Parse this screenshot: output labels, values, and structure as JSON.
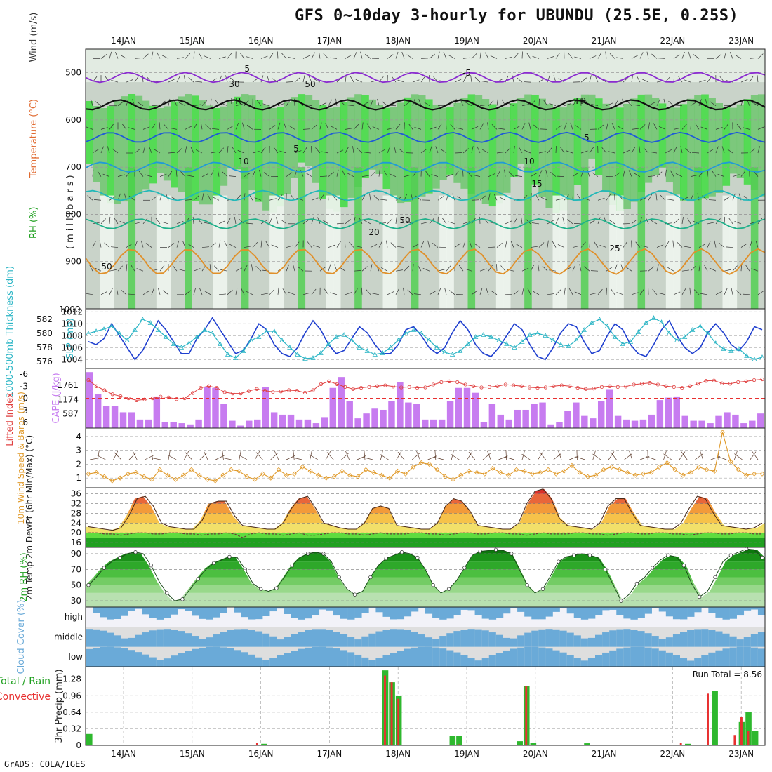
{
  "title": "GFS 0~10day 3-hourly for UBUNDU (25.5E, 0.25S)",
  "footer": "GrADS: COLA/IGES",
  "colors": {
    "rh_green": "#2ec12e",
    "temp_red": "#e8503a",
    "cape_purple": "#c77cf0",
    "slp_blue": "#1f3fcf",
    "thick_cyan": "#2ab5c5",
    "wind_orange": "#e09a2a",
    "cloud_blue": "#6aaad8",
    "precip_green": "#2eb82e",
    "precip_red": "#e83030"
  },
  "chart_data": [
    {
      "id": "upper_air",
      "type": "heatmap",
      "ylabel_parts": [
        "RH (%)",
        "Temperature (°C)",
        "Wind (m/s)"
      ],
      "yaxis_label": "(millibars)",
      "ylim": [
        1000,
        450
      ],
      "yticks": [
        500,
        600,
        700,
        800,
        900
      ],
      "x_dates": [
        "14JAN",
        "15JAN",
        "16JAN",
        "17JAN",
        "18JAN",
        "19JAN",
        "20JAN",
        "21JAN",
        "22JAN",
        "23JAN"
      ],
      "contour_labels": [
        "-5",
        "-5",
        "FR",
        "FR",
        "5",
        "5",
        "10",
        "10",
        "15",
        "20",
        "25",
        "30",
        "50",
        "50",
        "50"
      ],
      "isotherms": [
        {
          "label": "-5",
          "color": "#8a2bd0",
          "level": 510
        },
        {
          "label": "FR",
          "color": "#111111",
          "level": 568
        },
        {
          "label": "5",
          "color": "#1e5ad8",
          "level": 637
        },
        {
          "label": "10",
          "color": "#1f9ad8",
          "level": 700
        },
        {
          "label": "15",
          "color": "#22b8b8",
          "level": 760
        },
        {
          "label": "20",
          "color": "#1fb08a",
          "level": 820
        },
        {
          "label": "25",
          "color": "#e0902a",
          "level": 900
        }
      ]
    },
    {
      "id": "slp_thickness",
      "type": "line",
      "ylabel_left": "1000-500mb Thickness (dm)",
      "ylabel_right": "SLP (mb)",
      "thickness_ticks": [
        576,
        578,
        580,
        582
      ],
      "slp_ticks": [
        1004,
        1006,
        1008,
        1010,
        1012
      ],
      "slp_top_label": "1000",
      "series": [
        {
          "name": "SLP (mb)",
          "values": [
            1007,
            1006.5,
            1007.5,
            1010,
            1008,
            1006,
            1004,
            1005.5,
            1008,
            1010.5,
            1009,
            1007,
            1005,
            1005,
            1007.5,
            1009,
            1011,
            1009,
            1007,
            1005,
            1005.5,
            1007.5,
            1010,
            1009,
            1006.5,
            1005,
            1004.5,
            1006,
            1008.5,
            1010.5,
            1009,
            1006.5,
            1005,
            1005.5,
            1007.5,
            1009.5,
            1008.5,
            1006.5,
            1005,
            1005,
            1006.5,
            1009,
            1009.5,
            1008,
            1006,
            1005,
            1006,
            1008.5,
            1010.5,
            1009,
            1006.5,
            1005,
            1004.5,
            1006,
            1008,
            1010,
            1009,
            1006.5,
            1004.5,
            1004,
            1006,
            1008.5,
            1010,
            1009.5,
            1007,
            1005,
            1005.5,
            1008,
            1010,
            1009,
            1006.5,
            1005,
            1004.5,
            1006.5,
            1009,
            1010.5,
            1008,
            1006,
            1005,
            1006,
            1008.5,
            1010,
            1008.5,
            1006.5,
            1005.5,
            1007,
            1009.5,
            1009
          ]
        },
        {
          "name": "Thickness (dm)",
          "values": [
            580,
            580.3,
            580.6,
            581,
            580,
            579,
            580.5,
            582,
            581.5,
            580.5,
            579.5,
            578.5,
            578,
            578.6,
            579.5,
            580.5,
            580,
            578.5,
            577,
            576.5,
            577.5,
            579,
            579.5,
            580.3,
            580.3,
            579,
            578,
            577,
            576.4,
            576.5,
            577.2,
            578.5,
            579.5,
            579.8,
            579,
            578,
            577.5,
            577,
            577.2,
            578,
            579,
            580,
            580.5,
            580,
            579,
            578,
            577.3,
            577,
            577.5,
            578.5,
            579.5,
            579.8,
            579.5,
            579,
            578.5,
            578,
            578.8,
            579.8,
            580,
            579.7,
            579,
            578.4,
            578.2,
            579,
            580.5,
            581.5,
            582,
            581,
            579.5,
            578.5,
            578.8,
            580.2,
            581.5,
            582.2,
            581.6,
            580,
            579,
            579.5,
            580.5,
            581,
            580,
            578.6,
            577.8,
            577.5,
            577.8,
            576.8,
            576.3,
            576.6
          ]
        }
      ]
    },
    {
      "id": "cape_li",
      "type": "bar",
      "ylabel_left": "Lifted Index",
      "ylabel_right": "CAPE (J/kg)",
      "li_ticks": [
        "-6",
        "-3",
        "0",
        "3",
        "6"
      ],
      "cape_ticks": [
        587,
        1174,
        1761
      ],
      "series": [
        {
          "name": "CAPE (J/kg)",
          "values": [
            2300,
            1400,
            900,
            900,
            650,
            650,
            350,
            350,
            1300,
            250,
            250,
            200,
            150,
            350,
            1700,
            1650,
            1000,
            300,
            100,
            300,
            350,
            1700,
            650,
            550,
            550,
            350,
            350,
            200,
            450,
            1650,
            2100,
            1100,
            400,
            600,
            800,
            750,
            1100,
            1900,
            1050,
            1000,
            350,
            350,
            350,
            1100,
            1650,
            1650,
            1450,
            250,
            1000,
            550,
            350,
            750,
            750,
            1000,
            1050,
            150,
            250,
            700,
            1050,
            500,
            400,
            1100,
            1600,
            500,
            350,
            300,
            350,
            550,
            1150,
            1250,
            1300,
            500,
            300,
            300,
            200,
            500,
            650,
            550,
            200,
            300,
            600
          ]
        },
        {
          "name": "Lifted Index",
          "values": [
            -4.5,
            -3,
            -2,
            -1,
            -0.5,
            0,
            0.5,
            0.3,
            0,
            -0.4,
            -0.2,
            0.2,
            0,
            -1.3,
            -2.6,
            -3,
            -2.6,
            -1.5,
            -1.2,
            -1.2,
            -1.8,
            -2.3,
            -1.9,
            -1.6,
            -1.7,
            -2,
            -1.9,
            -1.4,
            -2,
            -3.5,
            -4.2,
            -3.5,
            -2.8,
            -2.3,
            -2.6,
            -2.8,
            -3,
            -3.2,
            -2.9,
            -2.7,
            -2.8,
            -2.6,
            -2.7,
            -3.4,
            -4,
            -4.2,
            -4,
            -3.4,
            -3,
            -2.7,
            -2.8,
            -3,
            -3.4,
            -3.2,
            -3,
            -2.7,
            -2.6,
            -2.7,
            -3,
            -3.2,
            -3,
            -2.6,
            -2.3,
            -2.4,
            -2.8,
            -3,
            -2.8,
            -2.9,
            -3.4,
            -3.6,
            -3.8,
            -3.4,
            -3,
            -2.8,
            -2.6,
            -3,
            -3.6,
            -4.3,
            -4.4,
            -3.7,
            -3.6,
            -4,
            -4.2,
            -4.5,
            -4.7
          ]
        }
      ]
    },
    {
      "id": "wind10m",
      "type": "line",
      "ylabel": "10m Wind Speed & Barbs (m/s)",
      "yticks": [
        1,
        2,
        3,
        4
      ],
      "series": [
        {
          "name": "10m Wind Speed",
          "values": [
            1.3,
            1.4,
            1.1,
            0.8,
            1.0,
            1.3,
            1.4,
            1.1,
            0.9,
            1.6,
            1.2,
            0.9,
            1.2,
            1.6,
            1.2,
            0.9,
            0.8,
            1.2,
            1.6,
            1.5,
            1.1,
            0.9,
            1.3,
            1.0,
            1.6,
            1.2,
            1.3,
            1.8,
            1.5,
            1.2,
            1.0,
            1.1,
            1.5,
            1.2,
            1.1,
            1.6,
            1.4,
            1.2,
            1.0,
            1.5,
            1.3,
            1.8,
            2.1,
            2.0,
            1.6,
            1.1,
            0.9,
            1.2,
            1.5,
            1.4,
            1.3,
            1.7,
            1.4,
            1.2,
            1.6,
            1.5,
            1.3,
            1.4,
            1.6,
            1.3,
            1.5,
            1.9,
            1.4,
            1.1,
            1.2,
            1.6,
            1.8,
            1.6,
            1.4,
            1.2,
            1.3,
            1.4,
            1.8,
            2.1,
            1.6,
            1.2,
            1.4,
            1.8,
            1.6,
            1.5,
            4.3,
            2.2,
            1.6,
            1.2,
            1.3,
            1.3
          ]
        }
      ]
    },
    {
      "id": "temp2m",
      "type": "area",
      "ylabel": "2m Temp 2m DewPt (6hr Min/Max) (°C)",
      "yticks": [
        16,
        20,
        24,
        28,
        32,
        36
      ],
      "series": [
        {
          "name": "2m Temp",
          "values": [
            22.5,
            22,
            21.5,
            21,
            22,
            27,
            34,
            35,
            31,
            24,
            22.5,
            22,
            21.5,
            21.5,
            25,
            32,
            33,
            33,
            27,
            23,
            22.5,
            22,
            21.5,
            21.5,
            24,
            30,
            34,
            35,
            30,
            24,
            23,
            22,
            21.5,
            21.5,
            24,
            30,
            31,
            30,
            23,
            22.5,
            22,
            21.5,
            21.5,
            24,
            31,
            34,
            33,
            29,
            23,
            22.5,
            22,
            21.5,
            21.5,
            24,
            32,
            37,
            38,
            34,
            26,
            23,
            22.5,
            22,
            21.5,
            24,
            31,
            34,
            34,
            28,
            23,
            22.5,
            22,
            21.5,
            21.5,
            24,
            30,
            35,
            34,
            28,
            23,
            22.5,
            22,
            21.5,
            22,
            24
          ]
        },
        {
          "name": "2m DewPt",
          "values": [
            20,
            20,
            19.5,
            19.5,
            19,
            19.5,
            20,
            20,
            19.5,
            19.5,
            20,
            20,
            19.5,
            19.5,
            19,
            19.5,
            19.5,
            20,
            19.5,
            18,
            19.5,
            20,
            19.5,
            19.5,
            19,
            19.5,
            20,
            19,
            19,
            19.5,
            20,
            20,
            19.5,
            19.5,
            19,
            19.5,
            20,
            19.5,
            19.5,
            19.5,
            20,
            20,
            19.5,
            19.5,
            19,
            19.5,
            20,
            20,
            19.5,
            19.5,
            20,
            20,
            19.5,
            19.5,
            19,
            19.5,
            20,
            19.5,
            19.5,
            19.5,
            20,
            20,
            19.5,
            19.5,
            19,
            19.5,
            20,
            20,
            19.5,
            19.5,
            20,
            20,
            19.5,
            19.5,
            19,
            19.5,
            20,
            20,
            19.5,
            19.5,
            20,
            20,
            19.5,
            19.5
          ]
        }
      ]
    },
    {
      "id": "rh2m",
      "type": "area",
      "ylabel": "2m RH (%)",
      "yticks": [
        30,
        50,
        70,
        90
      ],
      "series": [
        {
          "name": "2m RH",
          "values": [
            50,
            60,
            72,
            80,
            85,
            90,
            92,
            90,
            75,
            55,
            40,
            30,
            32,
            45,
            58,
            70,
            78,
            82,
            86,
            85,
            70,
            52,
            45,
            42,
            46,
            60,
            75,
            85,
            90,
            92,
            90,
            80,
            60,
            45,
            38,
            42,
            60,
            75,
            84,
            88,
            92,
            90,
            85,
            70,
            50,
            40,
            45,
            56,
            72,
            88,
            93,
            94,
            95,
            94,
            90,
            70,
            50,
            40,
            45,
            62,
            80,
            86,
            88,
            90,
            88,
            85,
            70,
            50,
            30,
            38,
            52,
            60,
            72,
            82,
            88,
            86,
            75,
            52,
            35,
            42,
            60,
            80,
            88,
            92,
            96,
            95,
            85
          ]
        }
      ]
    },
    {
      "id": "cloud",
      "type": "bar",
      "ylabel": "Cloud Cover (%)",
      "rows": [
        "high",
        "middle",
        "low"
      ]
    },
    {
      "id": "precip",
      "type": "bar",
      "ylabel_parts": [
        "Total / Rain",
        "Convective"
      ],
      "yaxis_label": "3hr Precip (mm)",
      "yticks": [
        "0",
        "0.32",
        "0.64",
        "0.96",
        "1.28"
      ],
      "run_total": "Run Total = 8.56",
      "series": [
        {
          "name": "Total",
          "values": [
            0.22,
            0,
            0,
            0,
            0,
            0,
            0,
            0,
            0,
            0,
            0,
            0,
            0,
            0,
            0,
            0,
            0,
            0,
            0,
            0,
            0,
            0,
            0,
            0,
            0,
            0,
            0.03,
            0,
            0,
            0,
            0,
            0,
            0,
            0,
            0,
            0,
            0,
            0,
            0,
            0,
            0,
            0,
            0,
            0,
            1.45,
            1.22,
            0.95,
            0,
            0,
            0,
            0,
            0,
            0,
            0,
            0.18,
            0.18,
            0,
            0,
            0,
            0,
            0,
            0,
            0,
            0,
            0.08,
            1.15,
            0.05,
            0,
            0,
            0,
            0,
            0,
            0,
            0,
            0.04,
            0,
            0,
            0,
            0,
            0,
            0,
            0,
            0,
            0,
            0,
            0,
            0,
            0,
            0,
            0.03,
            0,
            0,
            0,
            1.05,
            0,
            0,
            0,
            0.45,
            0.65,
            0.28,
            0
          ]
        },
        {
          "name": "Convective",
          "values": [
            0,
            0,
            0,
            0,
            0,
            0,
            0,
            0,
            0,
            0,
            0,
            0,
            0,
            0,
            0,
            0,
            0,
            0,
            0,
            0,
            0,
            0,
            0,
            0,
            0,
            0.05,
            0,
            0,
            0,
            0,
            0,
            0,
            0,
            0,
            0,
            0,
            0,
            0,
            0,
            0,
            0,
            0,
            0,
            0,
            1.35,
            1.22,
            0.9,
            0,
            0,
            0,
            0,
            0,
            0,
            0,
            0,
            0.02,
            0,
            0,
            0,
            0,
            0,
            0,
            0,
            0,
            0,
            1.15,
            0,
            0,
            0,
            0,
            0,
            0,
            0,
            0,
            0,
            0,
            0,
            0,
            0,
            0,
            0,
            0,
            0,
            0,
            0,
            0,
            0,
            0,
            0.05,
            0,
            0,
            0,
            1.0,
            0,
            0,
            0,
            0.2,
            0.55,
            0.28,
            0
          ]
        }
      ]
    }
  ]
}
